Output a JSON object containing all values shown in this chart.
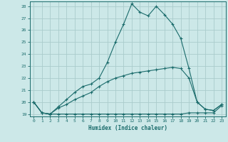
{
  "xlabel": "Humidex (Indice chaleur)",
  "background_color": "#cce8e8",
  "grid_color": "#aacccc",
  "line_color": "#1a6b6b",
  "xlim": [
    -0.5,
    23.5
  ],
  "ylim": [
    18.8,
    28.4
  ],
  "yticks": [
    19,
    20,
    21,
    22,
    23,
    24,
    25,
    26,
    27,
    28
  ],
  "xticks": [
    0,
    1,
    2,
    3,
    4,
    5,
    6,
    7,
    8,
    9,
    10,
    11,
    12,
    13,
    14,
    15,
    16,
    17,
    18,
    19,
    20,
    21,
    22,
    23
  ],
  "curve1_x": [
    0,
    1,
    2,
    3,
    4,
    5,
    6,
    7,
    8,
    9,
    10,
    11,
    12,
    13,
    14,
    15,
    16,
    17,
    18,
    19,
    20,
    21,
    22,
    23
  ],
  "curve1_y": [
    20.0,
    19.1,
    19.0,
    19.0,
    19.0,
    19.0,
    19.0,
    19.0,
    19.0,
    19.0,
    19.0,
    19.0,
    19.0,
    19.0,
    19.0,
    19.0,
    19.0,
    19.0,
    19.0,
    19.1,
    19.1,
    19.1,
    19.1,
    19.7
  ],
  "curve2_x": [
    0,
    1,
    2,
    3,
    4,
    5,
    6,
    7,
    8,
    9,
    10,
    11,
    12,
    13,
    14,
    15,
    16,
    17,
    18,
    19,
    20,
    21,
    22,
    23
  ],
  "curve2_y": [
    20.0,
    19.1,
    19.0,
    19.5,
    19.8,
    20.2,
    20.5,
    20.8,
    21.3,
    21.7,
    22.0,
    22.2,
    22.4,
    22.5,
    22.6,
    22.7,
    22.8,
    22.9,
    22.8,
    22.0,
    20.0,
    19.4,
    19.3,
    19.8
  ],
  "curve3_x": [
    0,
    1,
    2,
    3,
    4,
    5,
    6,
    7,
    8,
    9,
    10,
    11,
    12,
    13,
    14,
    15,
    16,
    17,
    18,
    19,
    20,
    21,
    22,
    23
  ],
  "curve3_y": [
    20.0,
    19.1,
    19.0,
    19.6,
    20.2,
    20.8,
    21.3,
    21.5,
    22.0,
    23.3,
    25.0,
    26.5,
    28.2,
    27.5,
    27.2,
    28.0,
    27.3,
    26.5,
    25.3,
    22.8,
    20.0,
    19.4,
    19.3,
    19.8
  ]
}
